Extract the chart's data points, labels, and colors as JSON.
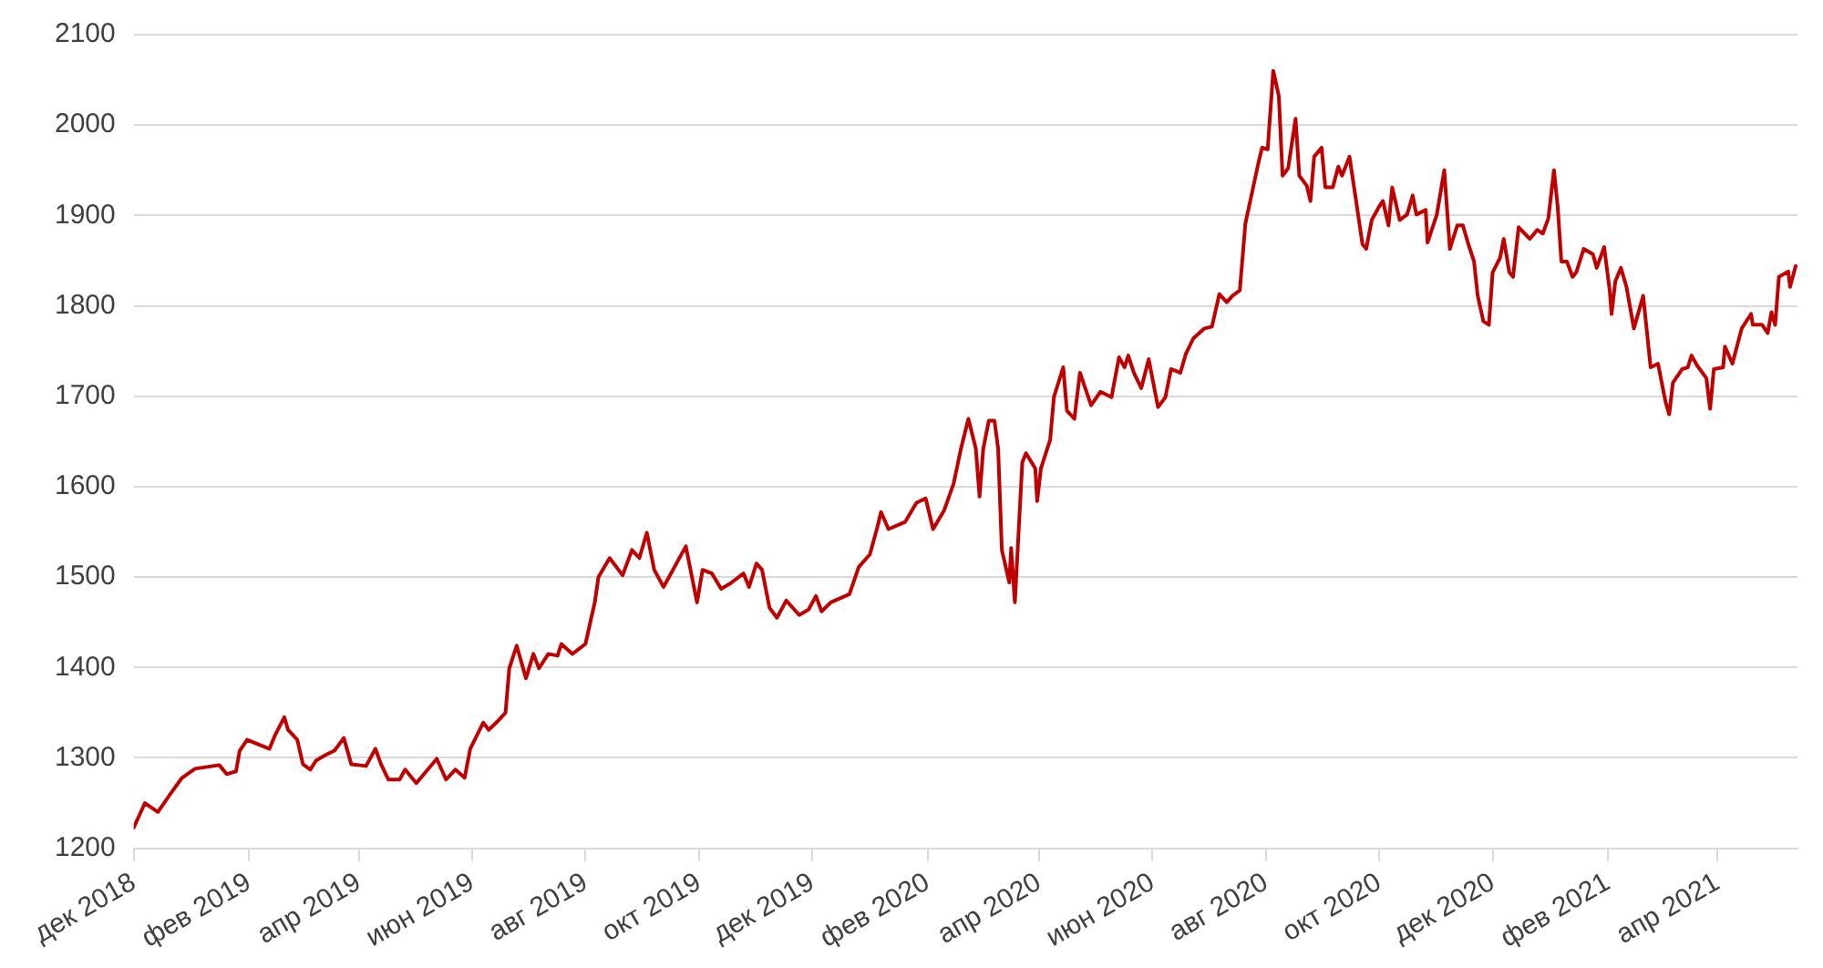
{
  "chart_data": {
    "type": "line",
    "x": [
      "2018-12-01",
      "2018-12-07",
      "2018-12-14",
      "2018-12-21",
      "2018-12-27",
      "2019-01-03",
      "2019-01-16",
      "2019-01-20",
      "2019-01-25",
      "2019-01-27",
      "2019-01-31",
      "2019-02-12",
      "2019-02-15",
      "2019-02-20",
      "2019-02-22",
      "2019-02-27",
      "2019-03-02",
      "2019-03-06",
      "2019-03-09",
      "2019-03-14",
      "2019-03-19",
      "2019-03-24",
      "2019-03-28",
      "2019-04-05",
      "2019-04-10",
      "2019-04-13",
      "2019-04-17",
      "2019-04-23",
      "2019-04-26",
      "2019-05-02",
      "2019-05-13",
      "2019-05-18",
      "2019-05-23",
      "2019-05-28",
      "2019-05-31",
      "2019-06-07",
      "2019-06-10",
      "2019-06-15",
      "2019-06-19",
      "2019-06-21",
      "2019-06-25",
      "2019-06-30",
      "2019-07-04",
      "2019-07-07",
      "2019-07-12",
      "2019-07-17",
      "2019-07-19",
      "2019-07-25",
      "2019-08-01",
      "2019-08-06",
      "2019-08-08",
      "2019-08-14",
      "2019-08-21",
      "2019-08-26",
      "2019-08-30",
      "2019-09-03",
      "2019-09-07",
      "2019-09-12",
      "2019-09-20",
      "2019-09-24",
      "2019-09-30",
      "2019-10-03",
      "2019-10-08",
      "2019-10-13",
      "2019-10-18",
      "2019-10-25",
      "2019-10-28",
      "2019-11-01",
      "2019-11-04",
      "2019-11-08",
      "2019-11-12",
      "2019-11-17",
      "2019-11-24",
      "2019-11-29",
      "2019-12-03",
      "2019-12-06",
      "2019-12-11",
      "2019-12-21",
      "2019-12-26",
      "2020-01-01",
      "2020-01-05",
      "2020-01-07",
      "2020-01-11",
      "2020-01-20",
      "2020-01-26",
      "2020-01-31",
      "2020-02-04",
      "2020-02-10",
      "2020-02-15",
      "2020-02-19",
      "2020-02-23",
      "2020-02-27",
      "2020-02-29",
      "2020-03-02",
      "2020-03-05",
      "2020-03-08",
      "2020-03-10",
      "2020-03-12",
      "2020-03-16",
      "2020-03-17",
      "2020-03-19",
      "2020-03-23",
      "2020-03-25",
      "2020-03-30",
      "2020-03-31",
      "2020-04-02",
      "2020-04-07",
      "2020-04-09",
      "2020-04-14",
      "2020-04-16",
      "2020-04-20",
      "2020-04-23",
      "2020-04-29",
      "2020-05-04",
      "2020-05-10",
      "2020-05-14",
      "2020-05-17",
      "2020-05-19",
      "2020-05-22",
      "2020-05-26",
      "2020-05-30",
      "2020-06-04",
      "2020-06-08",
      "2020-06-11",
      "2020-06-16",
      "2020-06-19",
      "2020-06-23",
      "2020-06-29",
      "2020-07-03",
      "2020-07-07",
      "2020-07-11",
      "2020-07-14",
      "2020-07-18",
      "2020-07-21",
      "2020-07-28",
      "2020-07-30",
      "2020-08-02",
      "2020-08-05",
      "2020-08-08",
      "2020-08-10",
      "2020-08-13",
      "2020-08-17",
      "2020-08-19",
      "2020-08-23",
      "2020-08-25",
      "2020-08-27",
      "2020-08-31",
      "2020-09-02",
      "2020-09-06",
      "2020-09-09",
      "2020-09-11",
      "2020-09-15",
      "2020-09-19",
      "2020-09-22",
      "2020-09-24",
      "2020-09-27",
      "2020-10-01",
      "2020-10-03",
      "2020-10-06",
      "2020-10-08",
      "2020-10-12",
      "2020-10-16",
      "2020-10-19",
      "2020-10-21",
      "2020-10-26",
      "2020-10-27",
      "2020-11-01",
      "2020-11-05",
      "2020-11-08",
      "2020-11-12",
      "2020-11-15",
      "2020-11-18",
      "2020-11-21",
      "2020-11-23",
      "2020-11-26",
      "2020-11-29",
      "2020-12-01",
      "2020-12-05",
      "2020-12-07",
      "2020-12-10",
      "2020-12-12",
      "2020-12-15",
      "2020-12-21",
      "2020-12-25",
      "2020-12-28",
      "2020-12-31",
      "2021-01-03",
      "2021-01-05",
      "2021-01-07",
      "2021-01-10",
      "2021-01-13",
      "2021-01-15",
      "2021-01-19",
      "2021-01-24",
      "2021-01-26",
      "2021-01-30",
      "2021-02-02",
      "2021-02-03",
      "2021-02-05",
      "2021-02-08",
      "2021-02-11",
      "2021-02-15",
      "2021-02-20",
      "2021-02-24",
      "2021-02-28",
      "2021-03-04",
      "2021-03-06",
      "2021-03-08",
      "2021-03-13",
      "2021-03-16",
      "2021-03-18",
      "2021-03-21",
      "2021-03-26",
      "2021-03-28",
      "2021-03-30",
      "2021-04-04",
      "2021-04-05",
      "2021-04-09",
      "2021-04-14",
      "2021-04-19",
      "2021-04-20",
      "2021-04-25",
      "2021-04-28",
      "2021-04-30",
      "2021-05-02",
      "2021-05-04",
      "2021-05-09",
      "2021-05-10",
      "2021-05-13"
    ],
    "series": [
      {
        "color": "#c00000",
        "values": [
          1223,
          1250,
          1240,
          1261,
          1278,
          1288,
          1292,
          1282,
          1285,
          1308,
          1320,
          1310,
          1325,
          1345,
          1331,
          1320,
          1293,
          1287,
          1297,
          1303,
          1308,
          1322,
          1293,
          1291,
          1310,
          1293,
          1276,
          1276,
          1287,
          1272,
          1299,
          1276,
          1287,
          1278,
          1310,
          1339,
          1331,
          1341,
          1350,
          1399,
          1424,
          1388,
          1415,
          1399,
          1415,
          1413,
          1426,
          1415,
          1426,
          1472,
          1500,
          1521,
          1502,
          1530,
          1521,
          1549,
          1508,
          1489,
          1519,
          1534,
          1472,
          1508,
          1504,
          1487,
          1493,
          1504,
          1489,
          1515,
          1508,
          1466,
          1455,
          1474,
          1458,
          1464,
          1479,
          1462,
          1472,
          1481,
          1511,
          1525,
          1555,
          1572,
          1553,
          1561,
          1582,
          1587,
          1553,
          1574,
          1603,
          1642,
          1675,
          1642,
          1589,
          1642,
          1673,
          1673,
          1642,
          1530,
          1494,
          1532,
          1472,
          1627,
          1637,
          1620,
          1584,
          1620,
          1652,
          1699,
          1732,
          1684,
          1675,
          1726,
          1690,
          1705,
          1699,
          1743,
          1732,
          1745,
          1726,
          1709,
          1741,
          1688,
          1699,
          1730,
          1726,
          1747,
          1764,
          1775,
          1777,
          1813,
          1804,
          1811,
          1817,
          1891,
          1958,
          1975,
          1973,
          2060,
          2032,
          1944,
          1952,
          2007,
          1944,
          1933,
          1916,
          1965,
          1975,
          1931,
          1931,
          1954,
          1944,
          1965,
          1910,
          1868,
          1863,
          1895,
          1910,
          1916,
          1889,
          1931,
          1895,
          1901,
          1922,
          1901,
          1906,
          1870,
          1901,
          1950,
          1863,
          1889,
          1889,
          1868,
          1849,
          1811,
          1783,
          1779,
          1837,
          1853,
          1874,
          1837,
          1832,
          1887,
          1874,
          1884,
          1880,
          1897,
          1950,
          1910,
          1849,
          1849,
          1832,
          1837,
          1863,
          1857,
          1842,
          1865,
          1817,
          1791,
          1827,
          1842,
          1821,
          1775,
          1811,
          1732,
          1736,
          1694,
          1680,
          1715,
          1730,
          1732,
          1745,
          1734,
          1720,
          1686,
          1730,
          1732,
          1755,
          1736,
          1775,
          1791,
          1779,
          1779,
          1770,
          1793,
          1779,
          1832,
          1838,
          1821,
          1844
        ]
      }
    ],
    "xlim": [
      "2018-12-01",
      "2021-05-14"
    ],
    "xticks": [
      {
        "value": "2018-12-01",
        "label": "дек 2018"
      },
      {
        "value": "2019-02-01",
        "label": "фев 2019"
      },
      {
        "value": "2019-04-01",
        "label": "апр 2019"
      },
      {
        "value": "2019-06-01",
        "label": "июн 2019"
      },
      {
        "value": "2019-08-01",
        "label": "авг 2019"
      },
      {
        "value": "2019-10-01",
        "label": "окт 2019"
      },
      {
        "value": "2019-12-01",
        "label": "дек 2019"
      },
      {
        "value": "2020-02-01",
        "label": "фев 2020"
      },
      {
        "value": "2020-04-01",
        "label": "апр 2020"
      },
      {
        "value": "2020-06-01",
        "label": "июн 2020"
      },
      {
        "value": "2020-08-01",
        "label": "авг 2020"
      },
      {
        "value": "2020-10-01",
        "label": "окт 2020"
      },
      {
        "value": "2020-12-01",
        "label": "дек 2020"
      },
      {
        "value": "2021-02-01",
        "label": "фев 2021"
      },
      {
        "value": "2021-04-01",
        "label": "апр 2021"
      }
    ],
    "ylim": [
      1200,
      2100
    ],
    "yticks": [
      1200,
      1300,
      1400,
      1500,
      1600,
      1700,
      1800,
      1900,
      2000,
      2100
    ],
    "grid": "y",
    "marker": "none",
    "line_style": "solid"
  }
}
